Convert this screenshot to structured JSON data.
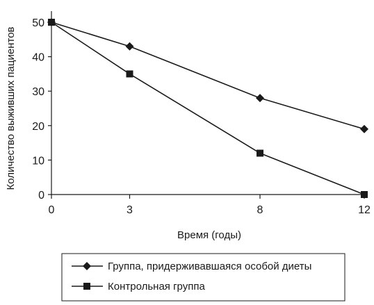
{
  "chart_data": {
    "type": "line",
    "title": "",
    "xlabel": "Время (годы)",
    "ylabel": "Количество выживших пациентов",
    "x": [
      0,
      3,
      8,
      12
    ],
    "x_tick_labels": [
      "0",
      "3",
      "8",
      "12"
    ],
    "xlim": [
      0,
      12
    ],
    "ylim": [
      0,
      50
    ],
    "y_ticks": [
      0,
      10,
      20,
      30,
      40,
      50
    ],
    "y_tick_labels": [
      "0",
      "10",
      "20",
      "30",
      "40",
      "50"
    ],
    "grid": false,
    "legend_position": "bottom",
    "series": [
      {
        "name": "Группа, придерживавшаяся особой диеты",
        "marker": "diamond",
        "values": [
          50,
          43,
          28,
          19
        ]
      },
      {
        "name": "Контрольная группа",
        "marker": "square",
        "values": [
          50,
          35,
          12,
          0
        ]
      }
    ]
  },
  "colors": {
    "line": "#1a1a1a",
    "axis": "#1a1a1a",
    "background": "#ffffff"
  }
}
